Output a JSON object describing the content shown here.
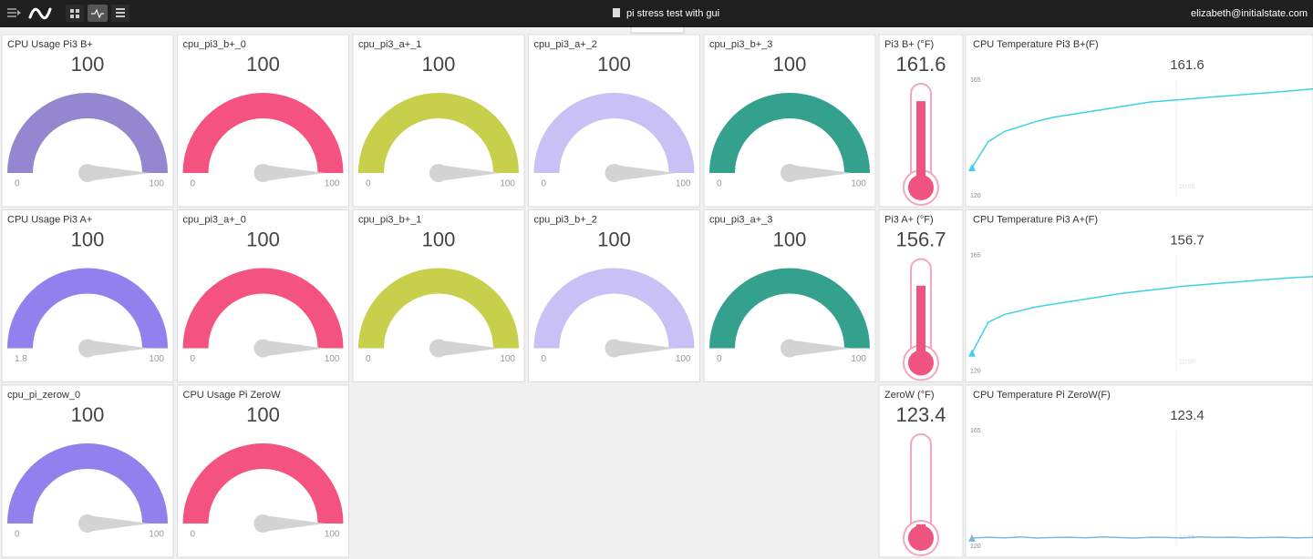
{
  "header": {
    "title": "pi stress test with gui",
    "user": "elizabeth@initialstate.com"
  },
  "gauges": [
    {
      "title": "CPU Usage Pi3 B+",
      "value": 100,
      "min": 0,
      "max": 100,
      "color": "#9487cf"
    },
    {
      "title": "cpu_pi3_b+_0",
      "value": 100,
      "min": 0,
      "max": 100,
      "color": "#f4527f"
    },
    {
      "title": "cpu_pi3_a+_1",
      "value": 100,
      "min": 0,
      "max": 100,
      "color": "#c8cf4a"
    },
    {
      "title": "cpu_pi3_a+_2",
      "value": 100,
      "min": 0,
      "max": 100,
      "color": "#c9c0f5"
    },
    {
      "title": "cpu_pi3_b+_3",
      "value": 100,
      "min": 0,
      "max": 100,
      "color": "#34a08e"
    },
    {
      "title": "CPU Usage Pi3 A+",
      "value": 100,
      "min": 1.8,
      "max": 100,
      "color": "#9180ee"
    },
    {
      "title": "cpu_pi3_a+_0",
      "value": 100,
      "min": 0,
      "max": 100,
      "color": "#f4527f"
    },
    {
      "title": "cpu_pi3_b+_1",
      "value": 100,
      "min": 0,
      "max": 100,
      "color": "#c8cf4a"
    },
    {
      "title": "cpu_pi3_b+_2",
      "value": 100,
      "min": 0,
      "max": 100,
      "color": "#c9c0f5"
    },
    {
      "title": "cpu_pi3_a+_3",
      "value": 100,
      "min": 0,
      "max": 100,
      "color": "#34a08e"
    },
    {
      "title": "cpu_pi_zerow_0",
      "value": 100,
      "min": 0,
      "max": 100,
      "color": "#9180ee"
    },
    {
      "title": "CPU Usage Pi ZeroW",
      "value": 100,
      "min": 0,
      "max": 100,
      "color": "#f4527f"
    }
  ],
  "thermometers": [
    {
      "title": "Pi3 B+ (°F)",
      "value": 161.6
    },
    {
      "title": "Pi3 A+ (°F)",
      "value": 156.7
    },
    {
      "title": "ZeroW (°F)",
      "value": 123.4
    }
  ],
  "line_charts": [
    {
      "title": "CPU Temperature Pi3 B+(F)",
      "value": 161.6,
      "ylim": [
        120,
        165
      ],
      "yticks": [
        120,
        165
      ],
      "xtick": "10:55",
      "color": "#3fd0e8",
      "values": [
        131,
        141,
        145,
        147,
        149,
        150.5,
        151.5,
        152.5,
        153.5,
        154.5,
        155.5,
        156.5,
        157,
        157.5,
        158,
        158.5,
        159,
        159.5,
        160,
        160.5,
        161,
        161.6
      ]
    },
    {
      "title": "CPU Temperature Pi3 A+(F)",
      "value": 156.7,
      "ylim": [
        120,
        165
      ],
      "yticks": [
        120,
        165
      ],
      "xtick": "10:55",
      "color": "#3fd0e8",
      "values": [
        127,
        139,
        142,
        143.5,
        145,
        146,
        147,
        148,
        149,
        150,
        150.8,
        151.5,
        152.2,
        153,
        153.5,
        154,
        154.5,
        155,
        155.5,
        156,
        156.4,
        156.7
      ]
    },
    {
      "title": "CPU Temperature Pi ZeroW(F)",
      "value": 123.4,
      "ylim": [
        120,
        165
      ],
      "yticks": [
        120,
        165
      ],
      "xtick": "10:55",
      "color": "#7ab8e8",
      "values": [
        123.2,
        123.5,
        123.3,
        123.6,
        123.2,
        123.4,
        123.5,
        123.3,
        123.6,
        123.4,
        123.2,
        123.5,
        123.4,
        123.3,
        123.6,
        123.4,
        123.5,
        123.3,
        123.4,
        123.5,
        123.3,
        123.4
      ]
    }
  ]
}
